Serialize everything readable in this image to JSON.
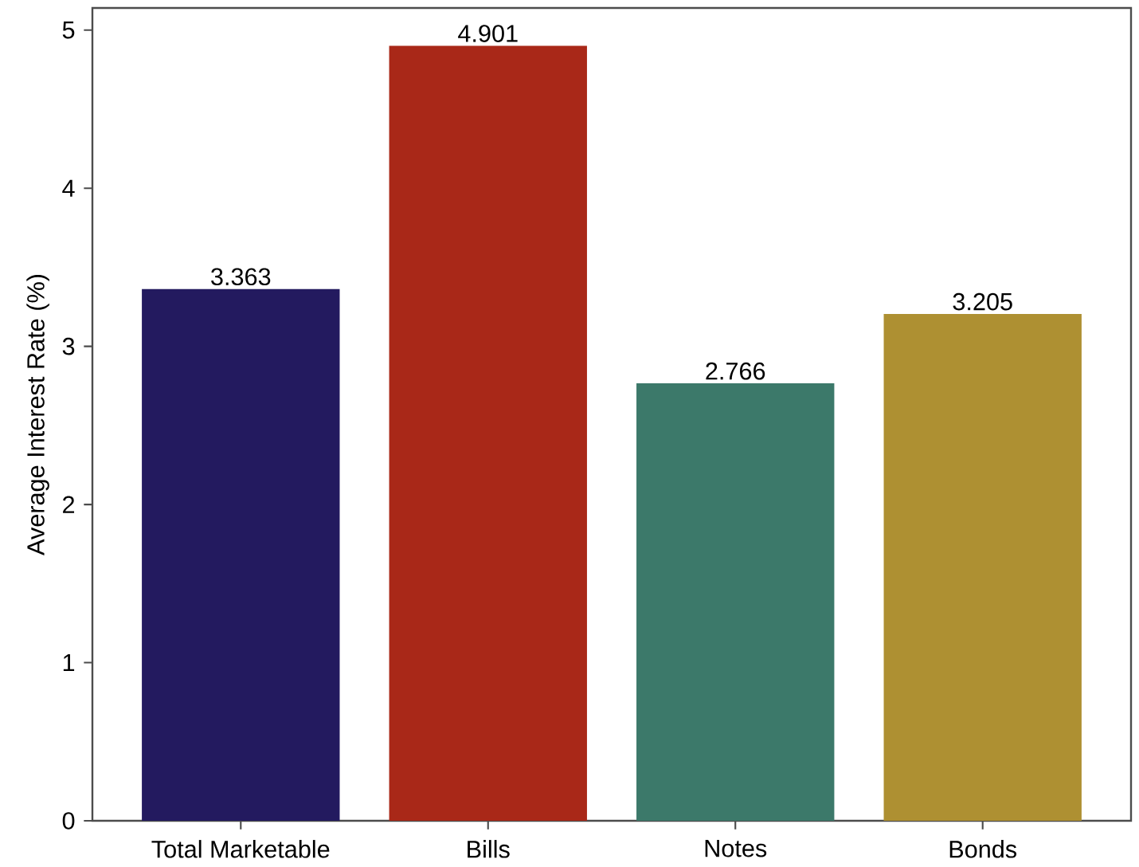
{
  "chart_data": {
    "type": "bar",
    "ylabel": "Average Interest Rate (%)",
    "categories": [
      "Total Marketable",
      "Bills",
      "Notes",
      "Bonds"
    ],
    "values": [
      3.363,
      4.901,
      2.766,
      3.205
    ],
    "colors": [
      "#231a5f",
      "#a92818",
      "#3c796a",
      "#ae9032"
    ],
    "ylim": [
      0,
      5.14
    ],
    "yticks": [
      0,
      1,
      2,
      3,
      4,
      5
    ],
    "data_labels": true
  }
}
